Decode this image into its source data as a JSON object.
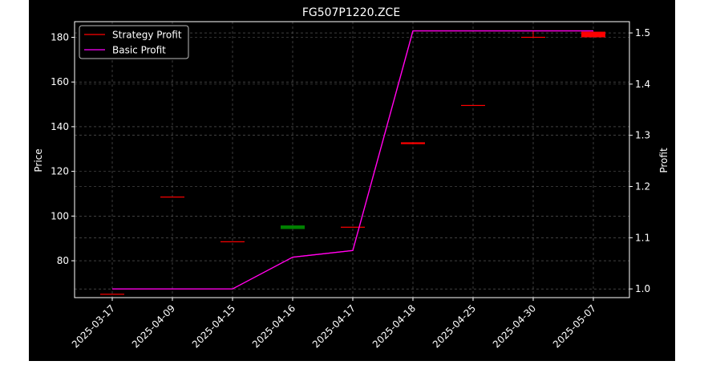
{
  "chart_data": {
    "type": "candlestick",
    "title": "FG507P1220.ZCE",
    "ylabel": "Price",
    "y2label": "Profit",
    "categories": [
      "2025-03-17",
      "2025-04-09",
      "2025-04-15",
      "2025-04-16",
      "2025-04-17",
      "2025-04-18",
      "2025-04-25",
      "2025-04-30",
      "2025-05-07"
    ],
    "ylim": [
      63.5,
      187.0
    ],
    "y2lim": [
      0.983,
      1.522
    ],
    "yticks": [
      80,
      100,
      120,
      140,
      160,
      180
    ],
    "y2ticks": [
      1.0,
      1.1,
      1.2,
      1.3,
      1.4,
      1.5
    ],
    "grid": true,
    "legend_position": "top-left",
    "candles": [
      {
        "date": "2025-03-17",
        "open": 65.0,
        "high": 65.0,
        "low": 65.0,
        "close": 65.0,
        "color": "#ff0000"
      },
      {
        "date": "2025-04-09",
        "open": 108.5,
        "high": 108.5,
        "low": 108.5,
        "close": 108.5,
        "color": "#ff0000"
      },
      {
        "date": "2025-04-15",
        "open": 88.5,
        "high": 88.5,
        "low": 88.5,
        "close": 88.5,
        "color": "#ff0000"
      },
      {
        "date": "2025-04-16",
        "open": 94.2,
        "high": 95.8,
        "low": 94.2,
        "close": 95.8,
        "color": "#008000"
      },
      {
        "date": "2025-04-17",
        "open": 95.0,
        "high": 95.0,
        "low": 95.0,
        "close": 95.0,
        "color": "#ff0000"
      },
      {
        "date": "2025-04-18",
        "open": 133.0,
        "high": 133.0,
        "low": 132.2,
        "close": 132.2,
        "color": "#ff0000"
      },
      {
        "date": "2025-04-25",
        "open": 149.5,
        "high": 149.5,
        "low": 149.5,
        "close": 149.5,
        "color": "#ff0000"
      },
      {
        "date": "2025-04-30",
        "open": 180.0,
        "high": 183.0,
        "low": 180.0,
        "close": 180.0,
        "color": "#ff0000"
      },
      {
        "date": "2025-05-07",
        "open": 182.5,
        "high": 182.5,
        "low": 180.0,
        "close": 180.0,
        "color": "#ff0000"
      }
    ],
    "series": [
      {
        "name": "Strategy Profit",
        "color": "#ff0000",
        "axis": "right",
        "values": [
          1.0,
          1.0,
          1.0,
          1.062,
          1.075,
          1.504,
          1.504,
          1.504,
          1.504
        ]
      },
      {
        "name": "Basic Profit",
        "color": "#ff00ff",
        "axis": "right",
        "values": [
          1.0,
          1.0,
          1.0,
          1.062,
          1.075,
          1.504,
          1.504,
          1.504,
          1.504
        ]
      }
    ]
  }
}
